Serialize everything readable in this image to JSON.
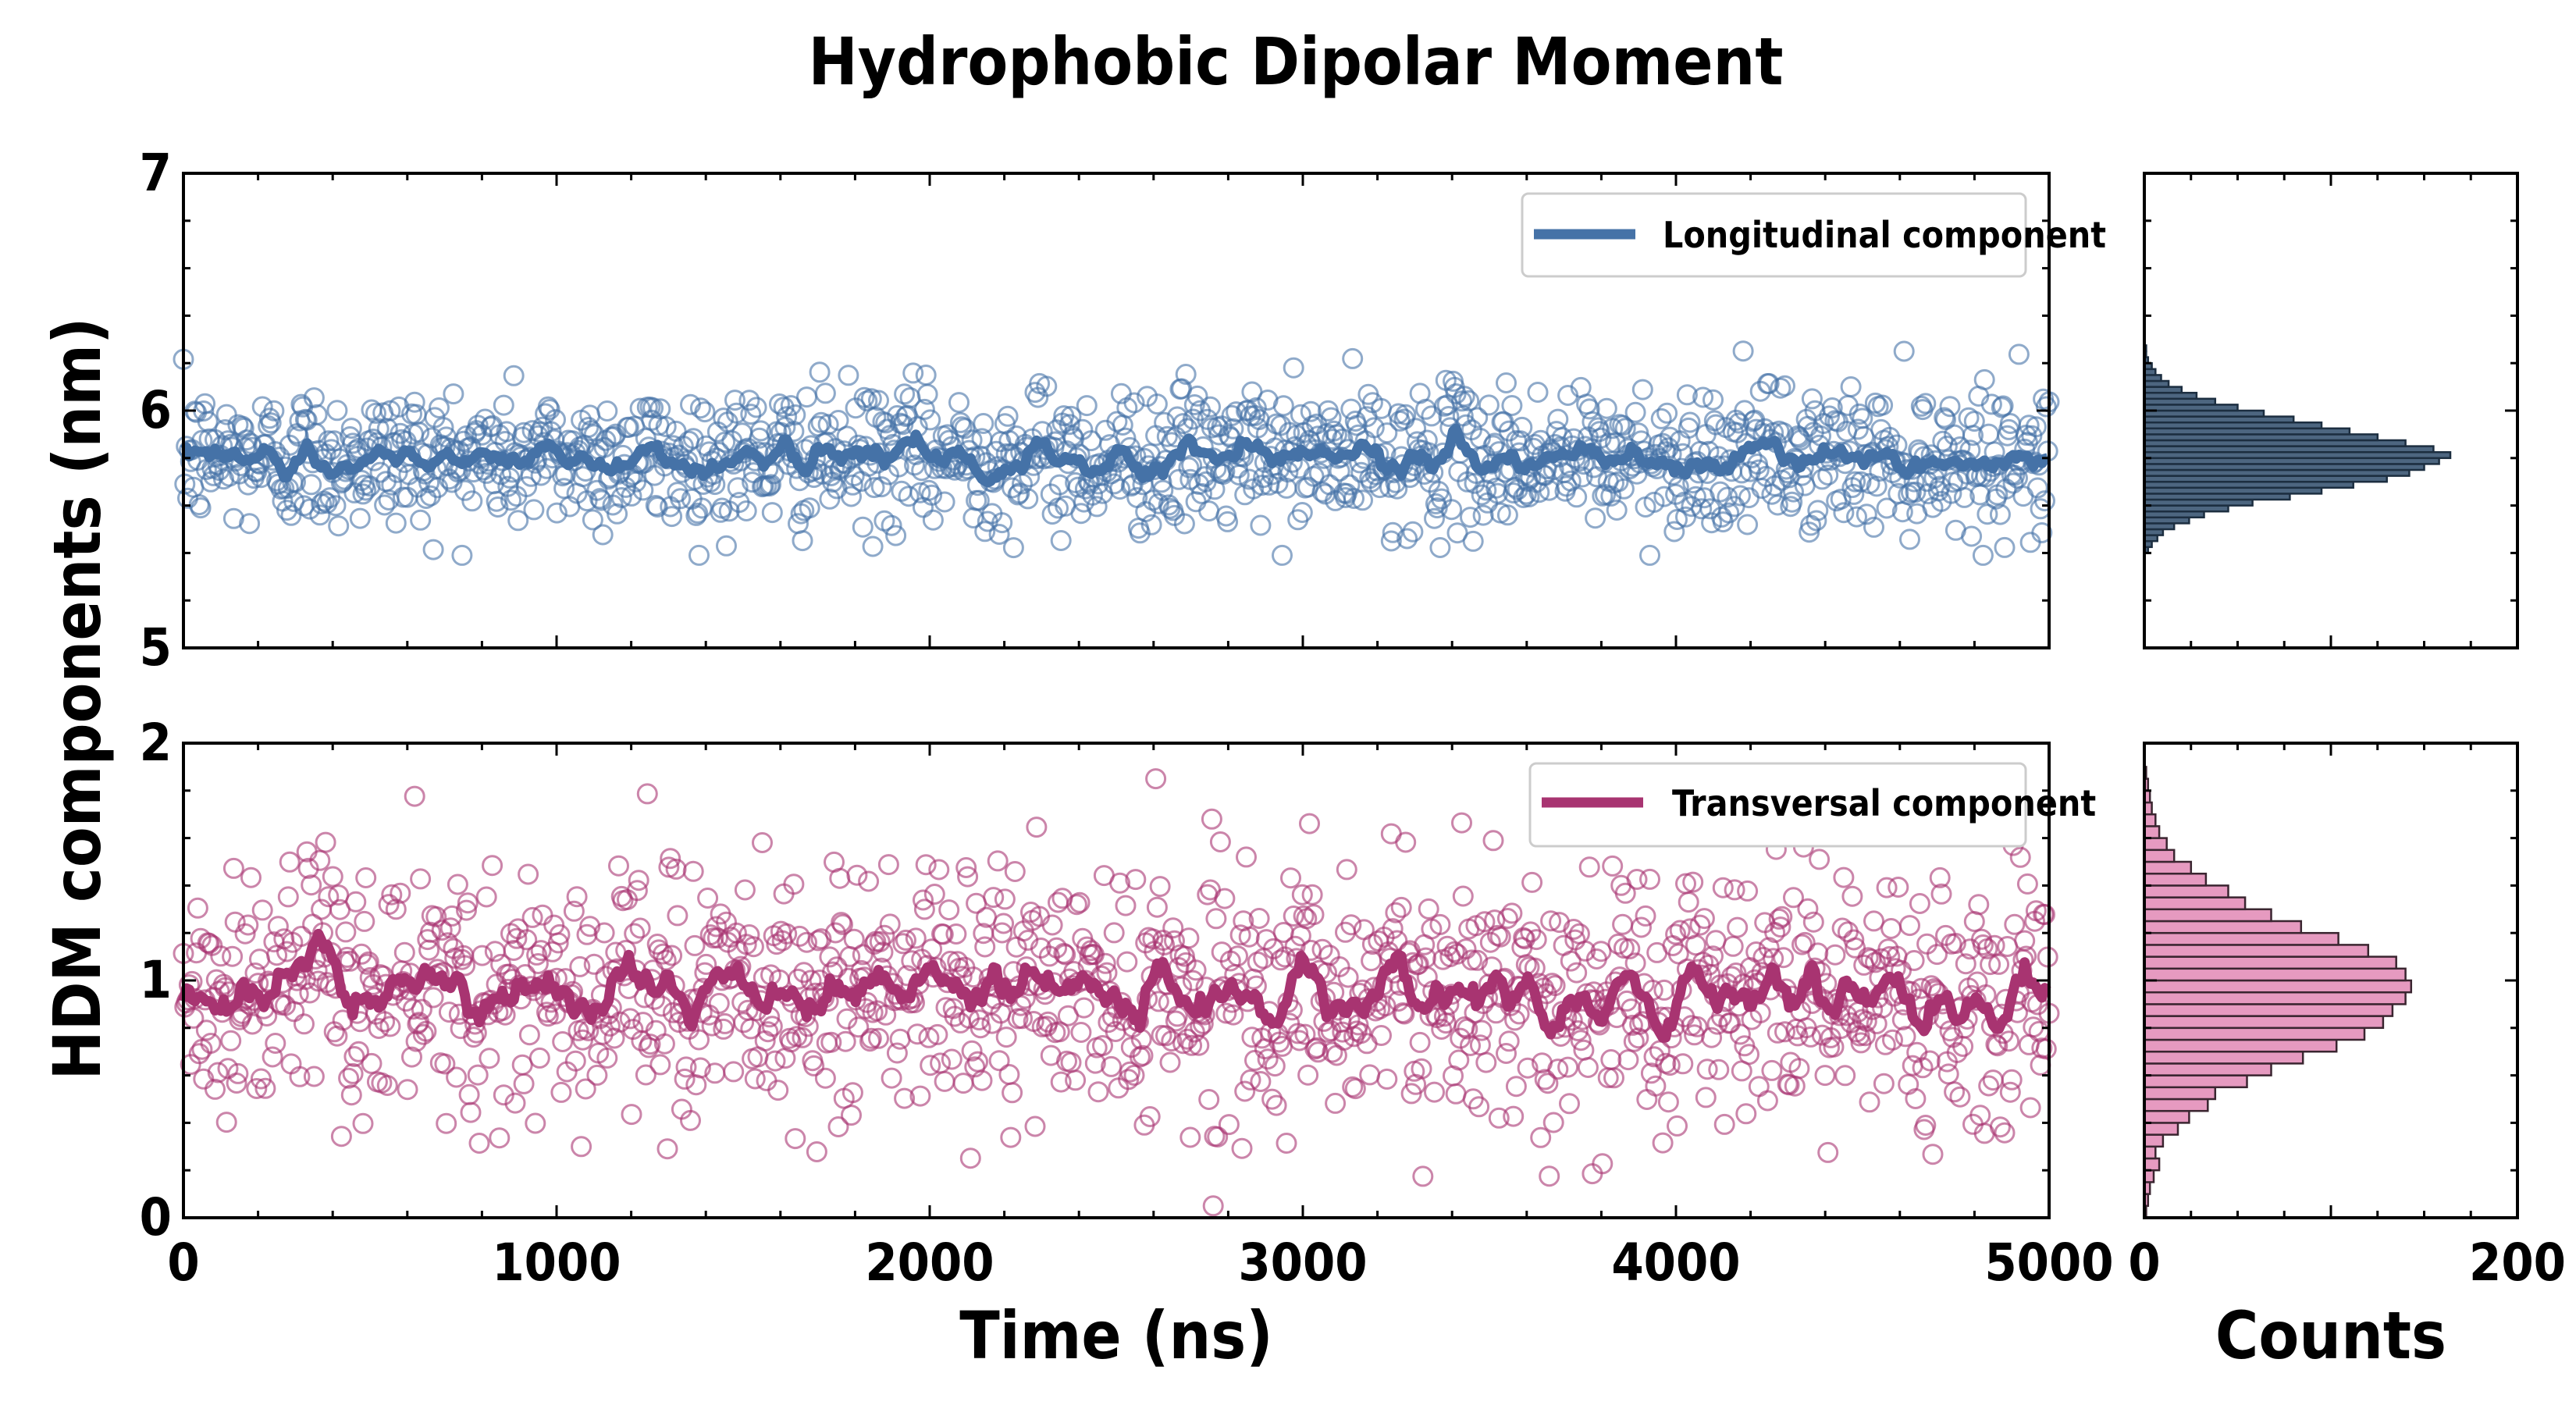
{
  "figure": {
    "title": "Hydrophobic Dipolar Moment",
    "ylabel": "HDM components (nm)",
    "xlabel": "Time (ns)",
    "hist_xlabel": "Counts"
  },
  "colors": {
    "longitudinal": "#4572a7",
    "longitudinal_hist": "#4d6680",
    "transversal": "#a83471",
    "transversal_hist": "#e69ac0"
  },
  "chart_data": [
    {
      "type": "scatter",
      "panel": "top time series",
      "series": [
        {
          "name": "Longitudinal component",
          "style": "open-circle scatter + running-average line",
          "y_mean": 5.8,
          "y_sd": 0.15,
          "y_min": 5.39,
          "y_max": 6.27
        }
      ],
      "x_range": [
        0,
        5000
      ],
      "ylim": [
        5,
        7
      ],
      "yticks": [
        "5",
        "6",
        "7"
      ],
      "xticks": [
        "0",
        "1000",
        "2000",
        "3000",
        "4000",
        "5000"
      ],
      "legend_position": "top-right",
      "legend_label": "Longitudinal component"
    },
    {
      "type": "scatter",
      "panel": "bottom time series",
      "series": [
        {
          "name": "Transversal component",
          "style": "open-circle scatter + running-average line",
          "y_mean": 0.95,
          "y_sd": 0.27,
          "y_min": 0.05,
          "y_max": 1.85
        }
      ],
      "x_range": [
        0,
        5000
      ],
      "ylim": [
        0,
        2
      ],
      "yticks": [
        "0",
        "1",
        "2"
      ],
      "xticks": [
        "0",
        "1000",
        "2000",
        "3000",
        "4000",
        "5000"
      ],
      "xtick_labels": [
        "0",
        "1000",
        "2000",
        "3000",
        "4000",
        "5000"
      ],
      "legend_position": "top-right",
      "legend_label": "Transversal component"
    },
    {
      "type": "bar",
      "panel": "top histogram (horizontal)",
      "bin_width": 0.025,
      "bin_starts": [
        5.4,
        5.425,
        5.45,
        5.475,
        5.5,
        5.525,
        5.55,
        5.575,
        5.6,
        5.625,
        5.65,
        5.675,
        5.7,
        5.725,
        5.75,
        5.775,
        5.8,
        5.825,
        5.85,
        5.875,
        5.9,
        5.925,
        5.95,
        5.975,
        6.0,
        6.025,
        6.05,
        6.075,
        6.1,
        6.125,
        6.15,
        6.175,
        6.2,
        6.225,
        6.25
      ],
      "counts": [
        2,
        4,
        7,
        10,
        16,
        24,
        32,
        45,
        58,
        78,
        95,
        112,
        130,
        142,
        150,
        158,
        164,
        155,
        140,
        125,
        110,
        95,
        80,
        64,
        50,
        38,
        28,
        20,
        13,
        9,
        6,
        4,
        2,
        1,
        1
      ],
      "xlim": [
        0,
        200
      ],
      "ylim": [
        5,
        7
      ]
    },
    {
      "type": "bar",
      "panel": "bottom histogram (horizontal)",
      "bin_width": 0.05,
      "bin_starts": [
        0.0,
        0.05,
        0.1,
        0.15,
        0.2,
        0.25,
        0.3,
        0.35,
        0.4,
        0.45,
        0.5,
        0.55,
        0.6,
        0.65,
        0.7,
        0.75,
        0.8,
        0.85,
        0.9,
        0.95,
        1.0,
        1.05,
        1.1,
        1.15,
        1.2,
        1.25,
        1.3,
        1.35,
        1.4,
        1.45,
        1.5,
        1.55,
        1.6,
        1.65,
        1.7,
        1.75,
        1.8,
        1.85
      ],
      "counts": [
        1,
        2,
        3,
        5,
        8,
        6,
        10,
        18,
        24,
        34,
        38,
        55,
        68,
        85,
        103,
        118,
        128,
        133,
        140,
        143,
        140,
        135,
        120,
        104,
        84,
        68,
        54,
        45,
        33,
        25,
        16,
        12,
        8,
        6,
        4,
        3,
        2,
        1
      ],
      "xlim": [
        0,
        200
      ],
      "ylim": [
        0,
        2
      ],
      "xticks": [
        "0",
        "200"
      ],
      "xtick_labels": [
        "0",
        "200"
      ]
    }
  ]
}
